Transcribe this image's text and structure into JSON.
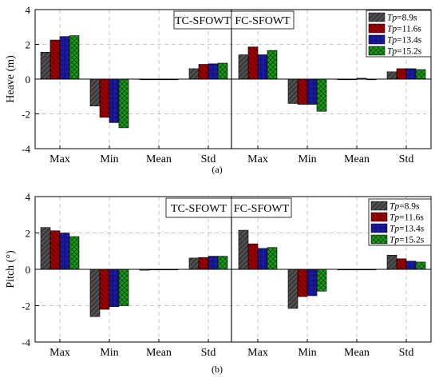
{
  "series_styles": [
    {
      "color": "#505050",
      "pattern": "diag-fwd"
    },
    {
      "color": "#a00000",
      "pattern": "diag-back"
    },
    {
      "color": "#1a1aa0",
      "pattern": "cross"
    },
    {
      "color": "#1a9a1a",
      "pattern": "crosshatch"
    }
  ],
  "chart_data": [
    {
      "type": "bar",
      "panel_label": "(a)",
      "ylabel": "Heave (m)",
      "ylim": [
        -4,
        4
      ],
      "yticks": [
        -4,
        -2,
        0,
        2,
        4
      ],
      "categories": [
        "Max",
        "Min",
        "Mean",
        "Std",
        "Max",
        "Min",
        "Mean",
        "Std"
      ],
      "groups": [
        "TC-SFOWT",
        "FC-SFOWT"
      ],
      "legend": {
        "placement": "top-right",
        "entries": [
          {
            "var": "Tp",
            "value": "=8.9s"
          },
          {
            "var": "Tp",
            "value": "=11.6s"
          },
          {
            "var": "Tp",
            "value": "=13.4s"
          },
          {
            "var": "Tp",
            "value": "=15.2s"
          }
        ]
      },
      "grid": true,
      "series": [
        {
          "name": "Tp=8.9s",
          "values": [
            1.55,
            -1.55,
            0.0,
            0.6,
            1.4,
            -1.4,
            0.0,
            0.42
          ]
        },
        {
          "name": "Tp=11.6s",
          "values": [
            2.25,
            -2.2,
            0.0,
            0.85,
            1.85,
            -1.45,
            0.0,
            0.6
          ]
        },
        {
          "name": "Tp=13.4s",
          "values": [
            2.45,
            -2.5,
            0.0,
            0.88,
            1.4,
            -1.45,
            0.05,
            0.6
          ]
        },
        {
          "name": "Tp=15.2s",
          "values": [
            2.5,
            -2.8,
            0.0,
            0.92,
            1.65,
            -1.85,
            0.0,
            0.55
          ]
        }
      ]
    },
    {
      "type": "bar",
      "panel_label": "(b)",
      "ylabel": "Pitch (°)",
      "ylim": [
        -4,
        4
      ],
      "yticks": [
        -4,
        -2,
        0,
        2,
        4
      ],
      "categories": [
        "Max",
        "Min",
        "Mean",
        "Std",
        "Max",
        "Min",
        "Mean",
        "Std"
      ],
      "groups": [
        "TC-SFOWT",
        "FC-SFOWT"
      ],
      "legend": {
        "placement": "top-right",
        "entries": [
          {
            "var": "Tp",
            "value": "=8.9s"
          },
          {
            "var": "Tp",
            "value": "=11.6s"
          },
          {
            "var": "Tp",
            "value": "=13.4s"
          },
          {
            "var": "Tp",
            "value": "=15.2s"
          }
        ]
      },
      "grid": true,
      "series": [
        {
          "name": "Tp=8.9s",
          "values": [
            2.3,
            -2.6,
            -0.05,
            0.62,
            2.15,
            -2.15,
            0.0,
            0.78
          ]
        },
        {
          "name": "Tp=11.6s",
          "values": [
            2.12,
            -2.2,
            0.0,
            0.65,
            1.4,
            -1.5,
            0.0,
            0.58
          ]
        },
        {
          "name": "Tp=13.4s",
          "values": [
            2.0,
            -2.05,
            0.0,
            0.72,
            1.15,
            -1.45,
            0.0,
            0.45
          ]
        },
        {
          "name": "Tp=15.2s",
          "values": [
            1.8,
            -2.0,
            0.0,
            0.72,
            1.2,
            -1.2,
            0.0,
            0.4
          ]
        }
      ]
    }
  ]
}
